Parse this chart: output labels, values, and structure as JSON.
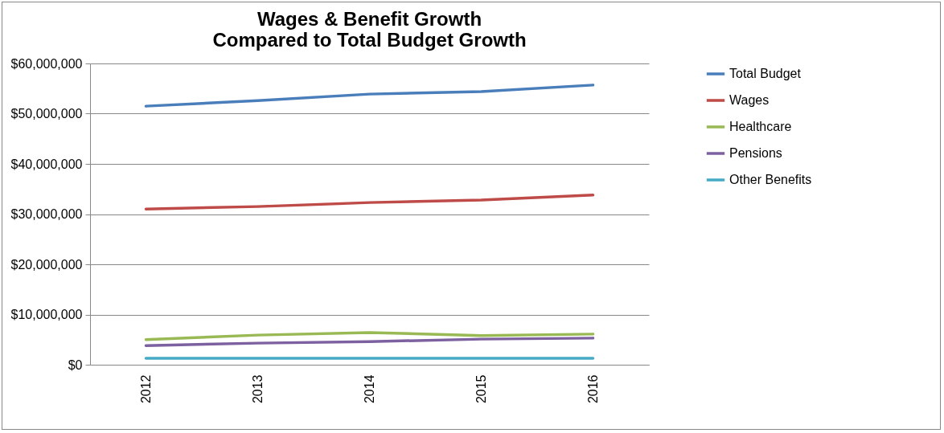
{
  "chart_data": {
    "type": "line",
    "title": "Wages & Benefit Growth Compared to Total Budget Growth",
    "categories": [
      "2012",
      "2013",
      "2014",
      "2015",
      "2016"
    ],
    "series": [
      {
        "name": "Total Budget",
        "color": "#4a7ebb",
        "values": [
          51500000,
          52600000,
          53900000,
          54400000,
          55700000
        ]
      },
      {
        "name": "Wages",
        "color": "#be4b48",
        "values": [
          31000000,
          31500000,
          32300000,
          32800000,
          33800000
        ]
      },
      {
        "name": "Healthcare",
        "color": "#98b954",
        "values": [
          5000000,
          5900000,
          6400000,
          5800000,
          6100000
        ]
      },
      {
        "name": "Pensions",
        "color": "#7d60a0",
        "values": [
          3800000,
          4300000,
          4600000,
          5100000,
          5300000
        ]
      },
      {
        "name": "Other Benefits",
        "color": "#46aac5",
        "values": [
          1300000,
          1300000,
          1300000,
          1300000,
          1300000
        ]
      }
    ],
    "ylim": [
      0,
      60000000
    ],
    "yticks": [
      {
        "value": 0,
        "label": "$0"
      },
      {
        "value": 10000000,
        "label": "$10,000,000"
      },
      {
        "value": 20000000,
        "label": "$20,000,000"
      },
      {
        "value": 30000000,
        "label": "$30,000,000"
      },
      {
        "value": 40000000,
        "label": "$40,000,000"
      },
      {
        "value": 50000000,
        "label": "$50,000,000"
      },
      {
        "value": 60000000,
        "label": "$60,000,000"
      }
    ],
    "grid": "y",
    "legend": "right",
    "marker": "none"
  }
}
